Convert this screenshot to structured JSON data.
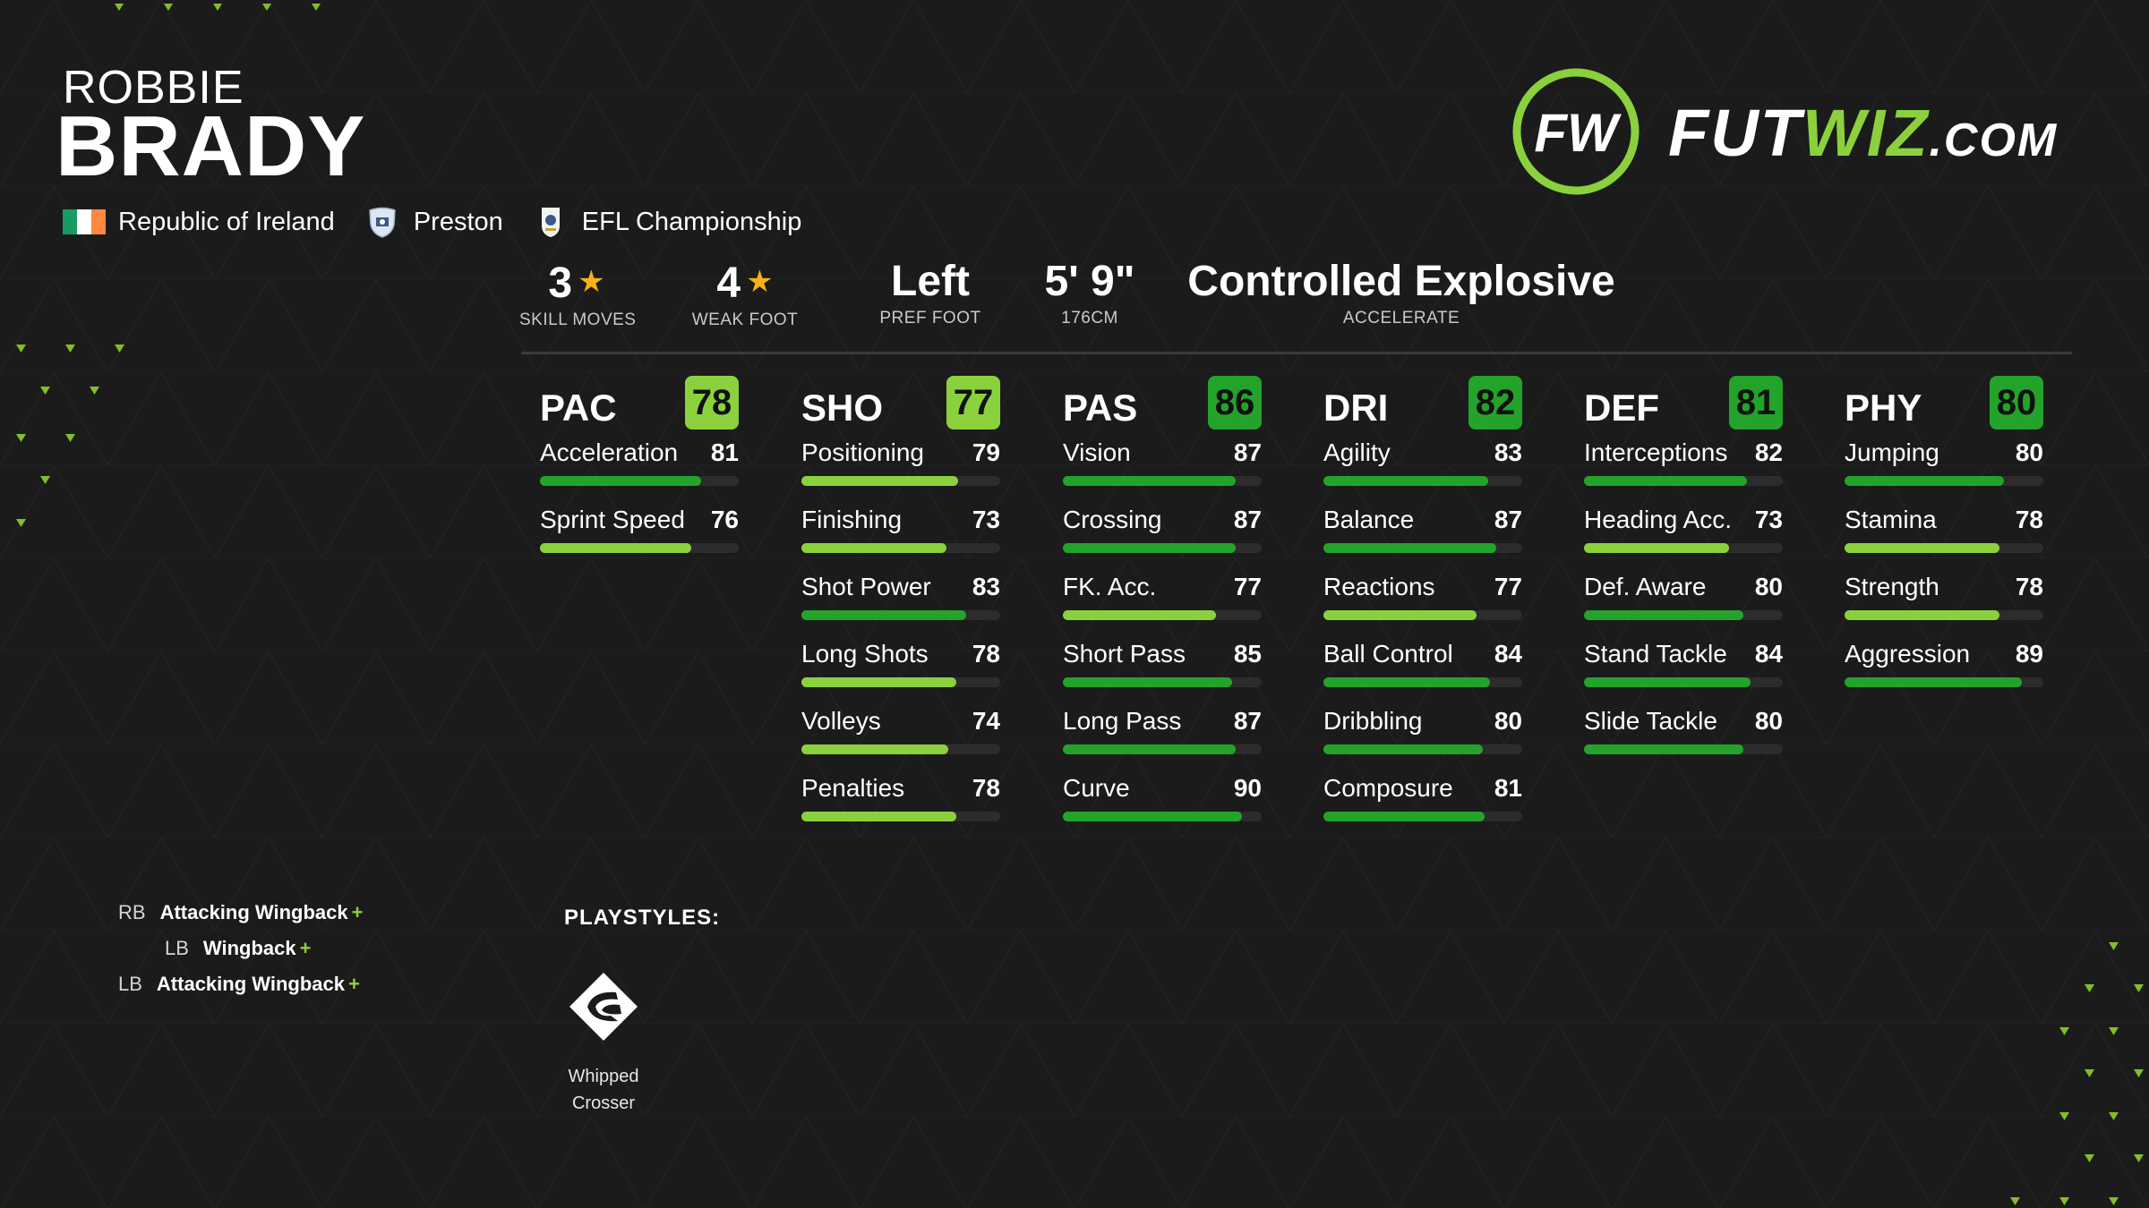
{
  "player": {
    "first_name": "ROBBIE",
    "last_name": "BRADY",
    "nation": "Republic of Ireland",
    "club": "Preston",
    "league": "EFL Championship"
  },
  "logo_text": "FUTWIZ.COM",
  "attributes": [
    {
      "value": "3",
      "label": "SKILL MOVES",
      "star": true
    },
    {
      "value": "4",
      "label": "WEAK FOOT",
      "star": true
    },
    {
      "value": "Left",
      "label": "PREF FOOT",
      "star": false
    },
    {
      "value": "5' 9\"",
      "label": "176CM",
      "star": false
    },
    {
      "value": "Controlled Explosive",
      "label": "ACCELERATE",
      "star": false
    }
  ],
  "stat_groups": [
    {
      "abbr": "PAC",
      "rating": 78,
      "stats": [
        {
          "name": "Acceleration",
          "value": 81
        },
        {
          "name": "Sprint Speed",
          "value": 76
        }
      ]
    },
    {
      "abbr": "SHO",
      "rating": 77,
      "stats": [
        {
          "name": "Positioning",
          "value": 79
        },
        {
          "name": "Finishing",
          "value": 73
        },
        {
          "name": "Shot Power",
          "value": 83
        },
        {
          "name": "Long Shots",
          "value": 78
        },
        {
          "name": "Volleys",
          "value": 74
        },
        {
          "name": "Penalties",
          "value": 78
        }
      ]
    },
    {
      "abbr": "PAS",
      "rating": 86,
      "stats": [
        {
          "name": "Vision",
          "value": 87
        },
        {
          "name": "Crossing",
          "value": 87
        },
        {
          "name": "FK. Acc.",
          "value": 77
        },
        {
          "name": "Short Pass",
          "value": 85
        },
        {
          "name": "Long Pass",
          "value": 87
        },
        {
          "name": "Curve",
          "value": 90
        }
      ]
    },
    {
      "abbr": "DRI",
      "rating": 82,
      "stats": [
        {
          "name": "Agility",
          "value": 83
        },
        {
          "name": "Balance",
          "value": 87
        },
        {
          "name": "Reactions",
          "value": 77
        },
        {
          "name": "Ball Control",
          "value": 84
        },
        {
          "name": "Dribbling",
          "value": 80
        },
        {
          "name": "Composure",
          "value": 81
        }
      ]
    },
    {
      "abbr": "DEF",
      "rating": 81,
      "stats": [
        {
          "name": "Interceptions",
          "value": 82
        },
        {
          "name": "Heading Acc.",
          "value": 73
        },
        {
          "name": "Def. Aware",
          "value": 80
        },
        {
          "name": "Stand Tackle",
          "value": 84
        },
        {
          "name": "Slide Tackle",
          "value": 80
        }
      ]
    },
    {
      "abbr": "PHY",
      "rating": 80,
      "stats": [
        {
          "name": "Jumping",
          "value": 80
        },
        {
          "name": "Stamina",
          "value": 78
        },
        {
          "name": "Strength",
          "value": 78
        },
        {
          "name": "Aggression",
          "value": 89
        }
      ]
    }
  ],
  "positions": [
    {
      "code": "RB",
      "name": "Attacking Wingback",
      "plus": "+"
    },
    {
      "code": "LB",
      "name": "Wingback",
      "plus": "+"
    },
    {
      "code": "LB",
      "name": "Attacking Wingback",
      "plus": "+"
    }
  ],
  "playstyles": {
    "title": "PLAYSTYLES:",
    "items": [
      {
        "name": "Whipped Crosser",
        "icon": "whipped-crosser-icon"
      }
    ]
  },
  "colors": {
    "background": "#1b1b1b",
    "green_light": "#8bd13d",
    "green_dark": "#23a32a",
    "star": "#f3b21a",
    "irish_flag": [
      "#169b62",
      "#ffffff",
      "#ff883e"
    ]
  }
}
